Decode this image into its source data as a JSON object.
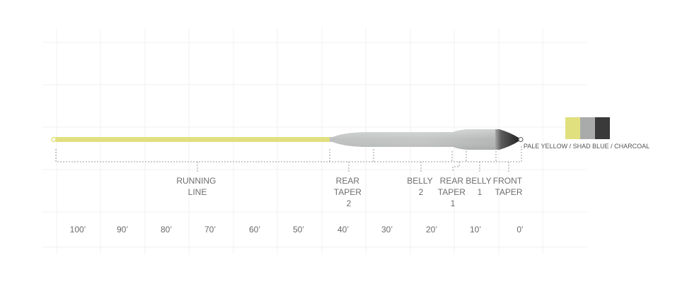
{
  "diagram": {
    "sections": [
      {
        "id": "running-line",
        "lines": [
          "RUNNING",
          "LINE"
        ]
      },
      {
        "id": "rear-taper-2",
        "lines": [
          "REAR",
          "TAPER",
          "2"
        ]
      },
      {
        "id": "belly-2",
        "lines": [
          "BELLY",
          "2"
        ]
      },
      {
        "id": "rear-taper-1",
        "lines": [
          "REAR",
          "TAPER",
          "1"
        ]
      },
      {
        "id": "belly-1",
        "lines": [
          "BELLY",
          "1"
        ]
      },
      {
        "id": "front-taper",
        "lines": [
          "FRONT",
          "TAPER"
        ]
      }
    ],
    "scale_labels": [
      "100’",
      "90’",
      "80’",
      "70’",
      "60’",
      "50’",
      "40’",
      "30’",
      "20’",
      "10’",
      "0’"
    ]
  },
  "legend": {
    "label": "PALE YELLOW / SHAD BLUE / CHARCOAL",
    "colors": [
      "#e1e07f",
      "#a9abab",
      "#3a3a3a"
    ],
    "color_names": [
      "pale-yellow",
      "shad-blue",
      "charcoal"
    ]
  }
}
